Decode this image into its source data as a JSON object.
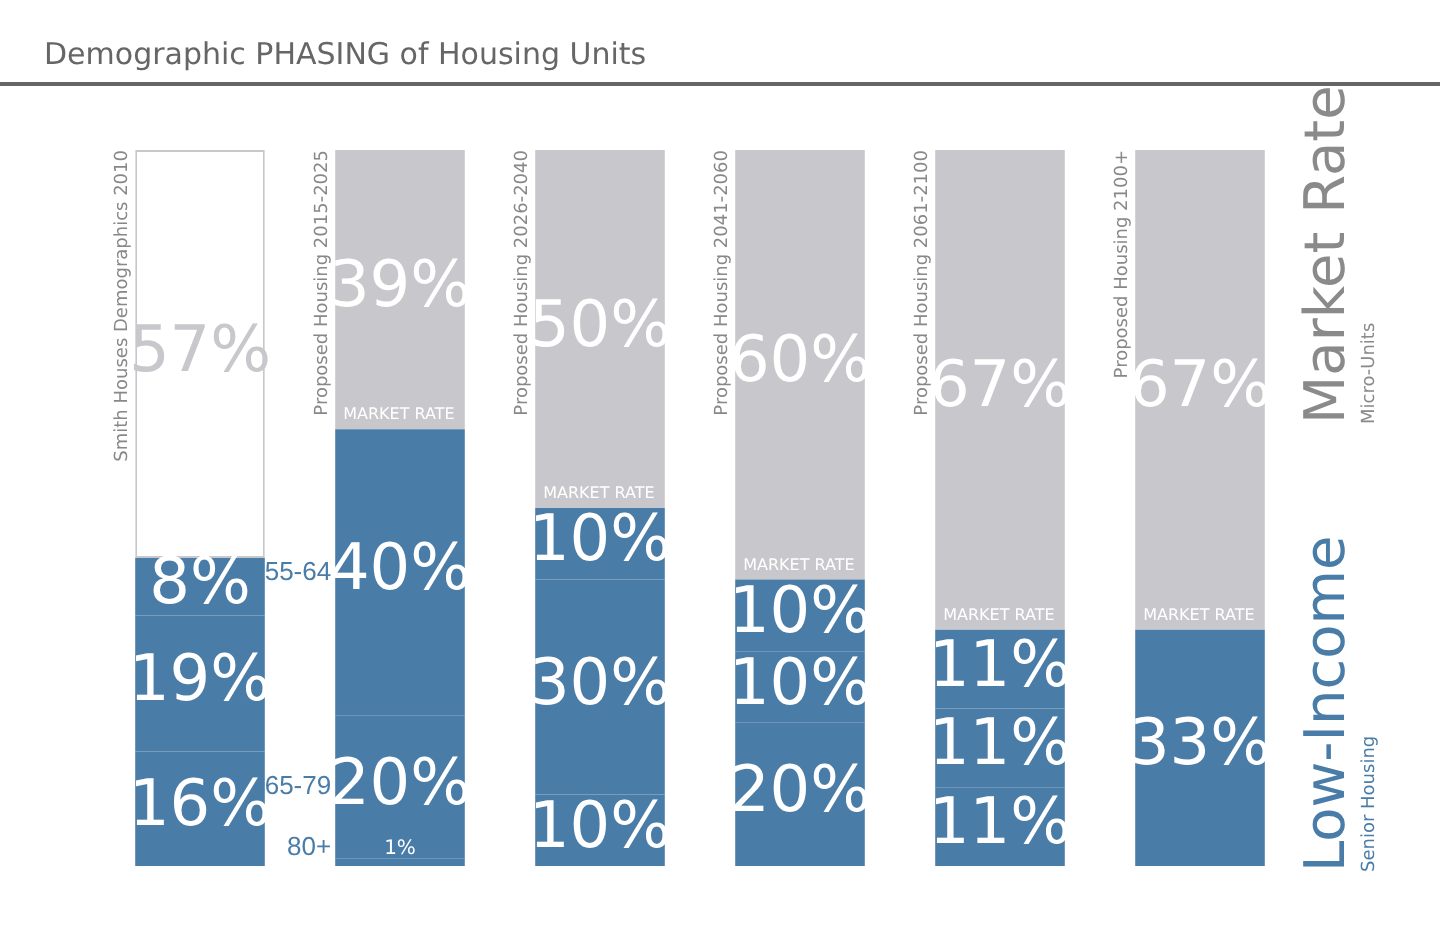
{
  "chart_data": {
    "type": "bar",
    "stacked": true,
    "title": "Demographic PHASING of Housing Units",
    "categories": [
      "Smith Houses Demographics 2010",
      "Proposed Housing 2015-2025",
      "Proposed Housing 2026-2040",
      "Proposed Housing 2041-2060",
      "Proposed Housing 2061-2100",
      "Proposed Housing 2100+"
    ],
    "series": [
      {
        "name": "80+",
        "color": "#4a7ca8",
        "values": [
          16,
          1,
          10,
          20,
          11,
          33
        ],
        "value_labels": [
          "16%",
          "1%",
          "10%",
          "20%",
          "11%",
          "33%"
        ]
      },
      {
        "name": "65-79",
        "color": "#4a7ca8",
        "values": [
          19,
          20,
          30,
          10,
          11,
          null
        ],
        "value_labels": [
          "19%",
          "20%",
          "30%",
          "10%",
          "11%",
          null
        ]
      },
      {
        "name": "55-64",
        "color": "#4a7ca8",
        "values": [
          8,
          40,
          10,
          10,
          11,
          null
        ],
        "value_labels": [
          "8%",
          "40%",
          "10%",
          "10%",
          "11%",
          null
        ]
      },
      {
        "name": "MARKET RATE",
        "color": "#c8c8cc",
        "colors": [
          "#ffffff",
          "#c8c8cc",
          "#c8c8cc",
          "#c8c8cc",
          "#c8c8cc",
          "#c8c8cc"
        ],
        "values": [
          57,
          39,
          50,
          60,
          67,
          67
        ],
        "value_labels": [
          "57%",
          "39%",
          "50%",
          "60%",
          "67%",
          "67%"
        ]
      }
    ],
    "tick_labels": false,
    "annotations": [
      "Market Rate",
      "Micro-Units",
      "Low-Income",
      "Senior Housing"
    ],
    "legend": "left"
  }
}
